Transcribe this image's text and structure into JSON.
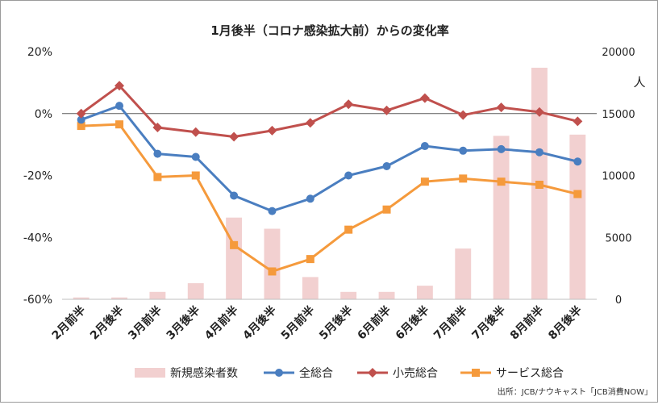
{
  "chart_data": {
    "type": "bar+line",
    "title": "1月後半（コロナ感染拡大前）からの変化率",
    "categories": [
      "2月前半",
      "2月後半",
      "3月前半",
      "3月後半",
      "4月前半",
      "4月後半",
      "5月前半",
      "5月後半",
      "6月前半",
      "6月後半",
      "7月前半",
      "7月後半",
      "8月前半",
      "8月後半"
    ],
    "y_left": {
      "ylim": [
        -60,
        20
      ],
      "ticks": [
        "20%",
        "0%",
        "-20%",
        "-40%",
        "-60%"
      ]
    },
    "y_right": {
      "ylim": [
        0,
        20000
      ],
      "ticks": [
        "20000",
        "15000",
        "10000",
        "5000",
        "0"
      ],
      "unit_label": "人"
    },
    "bars": {
      "name": "新規感染者数",
      "color": "#f2d0d0",
      "values": [
        150,
        150,
        600,
        1300,
        6600,
        5700,
        1800,
        600,
        600,
        1100,
        4100,
        13200,
        18700,
        13300
      ]
    },
    "series": [
      {
        "name": "全総合",
        "color": "#4a7ec0",
        "marker": "circle",
        "values": [
          -2,
          2.5,
          -13,
          -14,
          -26.5,
          -31.5,
          -27.5,
          -20,
          -17,
          -10.5,
          -12,
          -11.5,
          -12.5,
          -15.5
        ]
      },
      {
        "name": "小売総合",
        "color": "#c0504d",
        "marker": "diamond",
        "values": [
          0,
          9,
          -4.5,
          -6,
          -7.5,
          -5.5,
          -3,
          3,
          1,
          5,
          -0.5,
          2,
          0.5,
          -2.5
        ]
      },
      {
        "name": "サービス総合",
        "color": "#f59a3c",
        "marker": "square",
        "values": [
          -4,
          -3.5,
          -20.5,
          -20,
          -42.5,
          -51,
          -47,
          -37.5,
          -31,
          -22,
          -21,
          -22,
          -23,
          -26
        ]
      }
    ],
    "grid": false,
    "legend_position": "bottom",
    "source": "出所：JCB/ナウキャスト「JCB消費NOW」"
  }
}
